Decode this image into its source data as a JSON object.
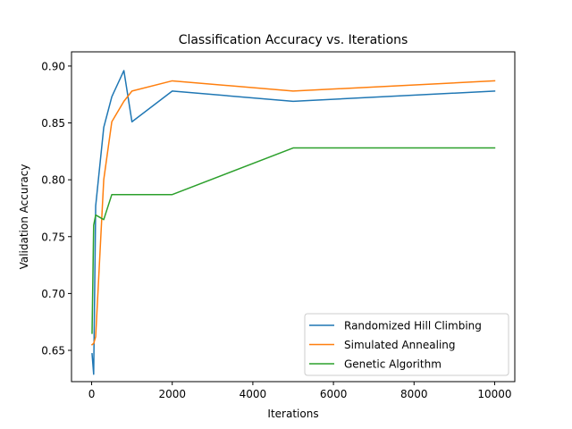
{
  "chart_data": {
    "type": "line",
    "title": "Classification Accuracy vs. Iterations",
    "xlabel": "Iterations",
    "ylabel": "Validation Accuracy",
    "xlim": [
      -500,
      10500
    ],
    "ylim": [
      0.6225,
      0.9125
    ],
    "xticks": [
      0,
      2000,
      4000,
      6000,
      8000,
      10000
    ],
    "xtick_labels": [
      "0",
      "2000",
      "4000",
      "6000",
      "8000",
      "10000"
    ],
    "yticks": [
      0.65,
      0.7,
      0.75,
      0.8,
      0.85,
      0.9
    ],
    "ytick_labels": [
      "0.65",
      "0.70",
      "0.75",
      "0.80",
      "0.85",
      "0.90"
    ],
    "grid": false,
    "legend_position": "bottom-right",
    "series": [
      {
        "name": "Randomized Hill Climbing",
        "color": "#1f77b4",
        "x": [
          10,
          50,
          100,
          300,
          500,
          800,
          1000,
          2000,
          5000,
          10000
        ],
        "y": [
          0.647,
          0.629,
          0.777,
          0.846,
          0.873,
          0.896,
          0.851,
          0.878,
          0.869,
          0.878
        ]
      },
      {
        "name": "Simulated Annealing",
        "color": "#ff7f0e",
        "x": [
          10,
          50,
          100,
          300,
          500,
          800,
          1000,
          2000,
          5000,
          10000
        ],
        "y": [
          0.655,
          0.656,
          0.662,
          0.8,
          0.851,
          0.869,
          0.878,
          0.887,
          0.878,
          0.887
        ]
      },
      {
        "name": "Genetic Algorithm",
        "color": "#2ca02c",
        "x": [
          10,
          50,
          100,
          300,
          500,
          800,
          1000,
          2000,
          5000,
          10000
        ],
        "y": [
          0.665,
          0.76,
          0.769,
          0.765,
          0.787,
          0.787,
          0.787,
          0.787,
          0.828,
          0.828
        ]
      }
    ]
  }
}
